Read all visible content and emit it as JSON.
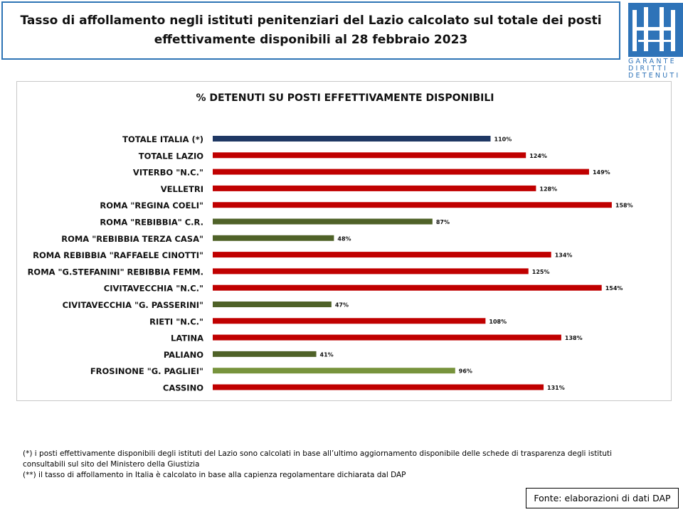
{
  "header": {
    "title_line1": "Tasso di affollamento negli istituti penitenziari del Lazio calcolato sul totale dei posti",
    "title_line2": "effettivamente disponibili al 28 febbraio 2023"
  },
  "logo": {
    "line1": "GARANTE",
    "line2": "DIRITTI",
    "line3": "DETENUTI",
    "color": "#2e73b8"
  },
  "chart_data": {
    "type": "bar",
    "orientation": "horizontal",
    "title": "% DETENUTI SU POSTI EFFETTIVAMENTE DISPONIBILI",
    "xlabel": "",
    "ylabel": "",
    "xlim": [
      0,
      160
    ],
    "grid": false,
    "legend": "none",
    "value_suffix": "%",
    "categories": [
      "TOTALE ITALIA (*)",
      "TOTALE LAZIO",
      "VITERBO \"N.C.\"",
      "VELLETRI",
      "ROMA \"REGINA COELI\"",
      "ROMA \"REBIBBIA\" C.R.",
      "ROMA \"REBIBBIA TERZA CASA\"",
      "ROMA REBIBBIA \"RAFFAELE CINOTTI\"",
      "ROMA \"G.STEFANINI\" REBIBBIA FEMM.",
      "CIVITAVECCHIA \"N.C.\"",
      "CIVITAVECCHIA \"G. PASSERINI\"",
      "RIETI \"N.C.\"",
      "LATINA",
      "PALIANO",
      "FROSINONE \"G. PAGLIEI\"",
      "CASSINO"
    ],
    "values": [
      110,
      124,
      149,
      128,
      158,
      87,
      48,
      134,
      125,
      154,
      47,
      108,
      138,
      41,
      96,
      131
    ],
    "colors": [
      "#1f3864",
      "#c00000",
      "#c00000",
      "#c00000",
      "#c00000",
      "#4f6228",
      "#4f6228",
      "#c00000",
      "#c00000",
      "#c00000",
      "#4f6228",
      "#c00000",
      "#c00000",
      "#4f6228",
      "#77933c",
      "#c00000"
    ]
  },
  "notes": {
    "line1": "(*) i posti effettivamente disponibili  degli istituti del Lazio sono calcolati in base all’ultimo aggiornamento disponibile  delle schede di trasparenza degli istituti",
    "line2": "consultabili  sul sito del Ministero della Giustizia",
    "line3": "(**) il tasso di affollamento  in Italia è calcolato in base alla capienza regolamentare dichiarata dal DAP"
  },
  "source": {
    "label": "Fonte: elaborazioni di dati DAP"
  }
}
